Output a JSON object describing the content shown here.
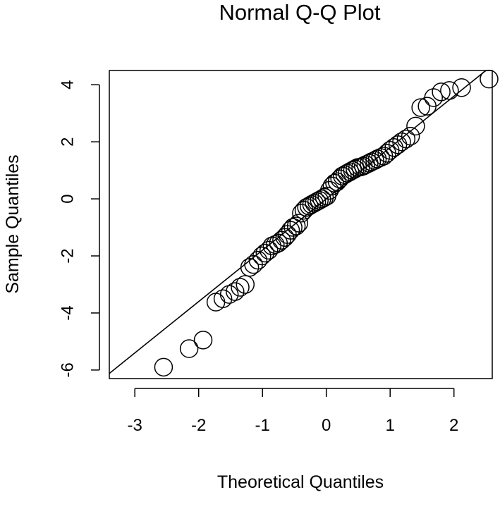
{
  "chart_data": {
    "type": "scatter",
    "title": "Normal Q-Q Plot",
    "xlabel": "Theoretical Quantiles",
    "ylabel": "Sample Quantiles",
    "xlim": [
      -3.4,
      2.6
    ],
    "ylim": [
      -6.3,
      4.5
    ],
    "xticks": [
      -3,
      -2,
      -1,
      0,
      1,
      2
    ],
    "xtick_labels": [
      "-3",
      "-2",
      "-1",
      "0",
      "1",
      "2"
    ],
    "yticks": [
      -6,
      -4,
      -2,
      0,
      2,
      4
    ],
    "ytick_labels": [
      "-6",
      "-4",
      "-2",
      "0",
      "2",
      "4"
    ],
    "grid": false,
    "reference_line": {
      "slope": 1.8,
      "intercept": 0.0
    },
    "points": [
      {
        "x": -2.55,
        "y": -5.9
      },
      {
        "x": -2.15,
        "y": -5.25
      },
      {
        "x": -1.93,
        "y": -4.95
      },
      {
        "x": -1.73,
        "y": -3.62
      },
      {
        "x": -1.62,
        "y": -3.5
      },
      {
        "x": -1.52,
        "y": -3.35
      },
      {
        "x": -1.43,
        "y": -3.25
      },
      {
        "x": -1.35,
        "y": -3.1
      },
      {
        "x": -1.27,
        "y": -3.0
      },
      {
        "x": -1.2,
        "y": -2.4
      },
      {
        "x": -1.14,
        "y": -2.3
      },
      {
        "x": -1.07,
        "y": -2.15
      },
      {
        "x": -1.01,
        "y": -2.0
      },
      {
        "x": -0.96,
        "y": -1.9
      },
      {
        "x": -0.9,
        "y": -1.8
      },
      {
        "x": -0.85,
        "y": -1.65
      },
      {
        "x": -0.8,
        "y": -1.6
      },
      {
        "x": -0.75,
        "y": -1.55
      },
      {
        "x": -0.7,
        "y": -1.45
      },
      {
        "x": -0.65,
        "y": -1.35
      },
      {
        "x": -0.61,
        "y": -1.25
      },
      {
        "x": -0.56,
        "y": -1.1
      },
      {
        "x": -0.52,
        "y": -1.0
      },
      {
        "x": -0.47,
        "y": -0.95
      },
      {
        "x": -0.43,
        "y": -0.85
      },
      {
        "x": -0.39,
        "y": -0.5
      },
      {
        "x": -0.35,
        "y": -0.4
      },
      {
        "x": -0.31,
        "y": -0.3
      },
      {
        "x": -0.27,
        "y": -0.25
      },
      {
        "x": -0.23,
        "y": -0.2
      },
      {
        "x": -0.19,
        "y": -0.15
      },
      {
        "x": -0.15,
        "y": -0.1
      },
      {
        "x": -0.11,
        "y": -0.05
      },
      {
        "x": -0.07,
        "y": 0.0
      },
      {
        "x": -0.03,
        "y": 0.05
      },
      {
        "x": 0.01,
        "y": 0.1
      },
      {
        "x": 0.05,
        "y": 0.3
      },
      {
        "x": 0.09,
        "y": 0.45
      },
      {
        "x": 0.13,
        "y": 0.55
      },
      {
        "x": 0.17,
        "y": 0.6
      },
      {
        "x": 0.21,
        "y": 0.7
      },
      {
        "x": 0.25,
        "y": 0.8
      },
      {
        "x": 0.29,
        "y": 0.85
      },
      {
        "x": 0.33,
        "y": 0.9
      },
      {
        "x": 0.37,
        "y": 0.95
      },
      {
        "x": 0.41,
        "y": 1.0
      },
      {
        "x": 0.45,
        "y": 1.05
      },
      {
        "x": 0.49,
        "y": 1.1
      },
      {
        "x": 0.54,
        "y": 1.12
      },
      {
        "x": 0.58,
        "y": 1.15
      },
      {
        "x": 0.62,
        "y": 1.2
      },
      {
        "x": 0.67,
        "y": 1.25
      },
      {
        "x": 0.71,
        "y": 1.3
      },
      {
        "x": 0.76,
        "y": 1.35
      },
      {
        "x": 0.8,
        "y": 1.4
      },
      {
        "x": 0.85,
        "y": 1.45
      },
      {
        "x": 0.9,
        "y": 1.5
      },
      {
        "x": 0.95,
        "y": 1.6
      },
      {
        "x": 1.0,
        "y": 1.7
      },
      {
        "x": 1.06,
        "y": 1.8
      },
      {
        "x": 1.12,
        "y": 1.9
      },
      {
        "x": 1.18,
        "y": 2.0
      },
      {
        "x": 1.25,
        "y": 2.1
      },
      {
        "x": 1.32,
        "y": 2.2
      },
      {
        "x": 1.4,
        "y": 2.55
      },
      {
        "x": 1.48,
        "y": 3.2
      },
      {
        "x": 1.58,
        "y": 3.25
      },
      {
        "x": 1.68,
        "y": 3.55
      },
      {
        "x": 1.8,
        "y": 3.75
      },
      {
        "x": 1.93,
        "y": 3.8
      },
      {
        "x": 2.12,
        "y": 3.9
      },
      {
        "x": 2.55,
        "y": 4.2
      }
    ]
  }
}
